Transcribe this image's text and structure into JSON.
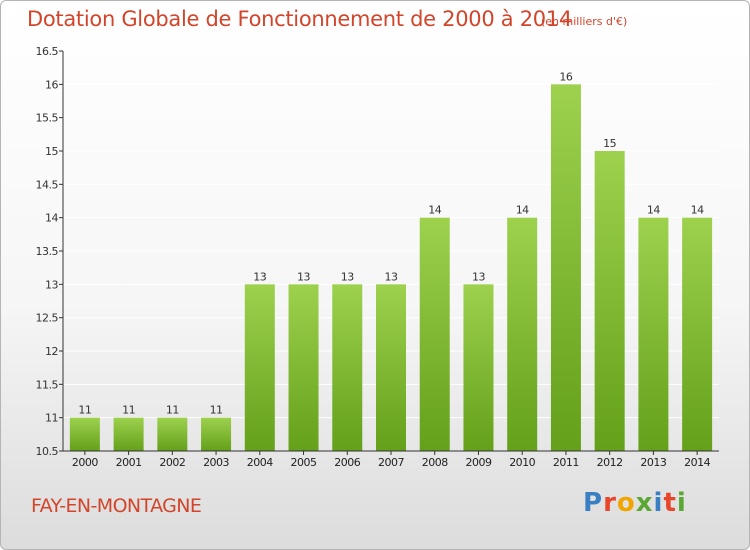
{
  "header": {
    "title": "Dotation Globale de Fonctionnement de 2000 à 2014",
    "subtitle": "(en milliers d'€)"
  },
  "footer": {
    "place": "FAY-EN-MONTAGNE",
    "logo": "Proxiti",
    "logo_colors": [
      "#3a7fc4",
      "#e8462a",
      "#f0a500",
      "#5aa832",
      "#3a7fc4",
      "#e8462a",
      "#5aa832"
    ]
  },
  "colors": {
    "accent": "#d2452b",
    "bar_light": "#9dd14e",
    "bar_dark": "#64a01a",
    "axis": "#333333",
    "grid": "#ffffff"
  },
  "chart_data": {
    "type": "bar",
    "title": "Dotation Globale de Fonctionnement de 2000 à 2014",
    "subtitle": "(en milliers d'€)",
    "xlabel": "",
    "ylabel": "",
    "categories": [
      "2000",
      "2001",
      "2002",
      "2003",
      "2004",
      "2005",
      "2006",
      "2007",
      "2008",
      "2009",
      "2010",
      "2011",
      "2012",
      "2013",
      "2014"
    ],
    "values": [
      11,
      11,
      11,
      11,
      13,
      13,
      13,
      13,
      14,
      13,
      14,
      16,
      15,
      14,
      14
    ],
    "data_labels": [
      "11",
      "11",
      "11",
      "11",
      "13",
      "13",
      "13",
      "13",
      "14",
      "13",
      "14",
      "16",
      "15",
      "14",
      "14"
    ],
    "ylim": [
      10.5,
      16.5
    ],
    "yticks": [
      10.5,
      11,
      11.5,
      12,
      12.5,
      13,
      13.5,
      14,
      14.5,
      15,
      15.5,
      16,
      16.5
    ],
    "ytick_labels": [
      "10.5",
      "11",
      "11.5",
      "12",
      "12.5",
      "13",
      "13.5",
      "14",
      "14.5",
      "15",
      "15.5",
      "16",
      "16.5"
    ],
    "grid": true,
    "legend": "none"
  }
}
